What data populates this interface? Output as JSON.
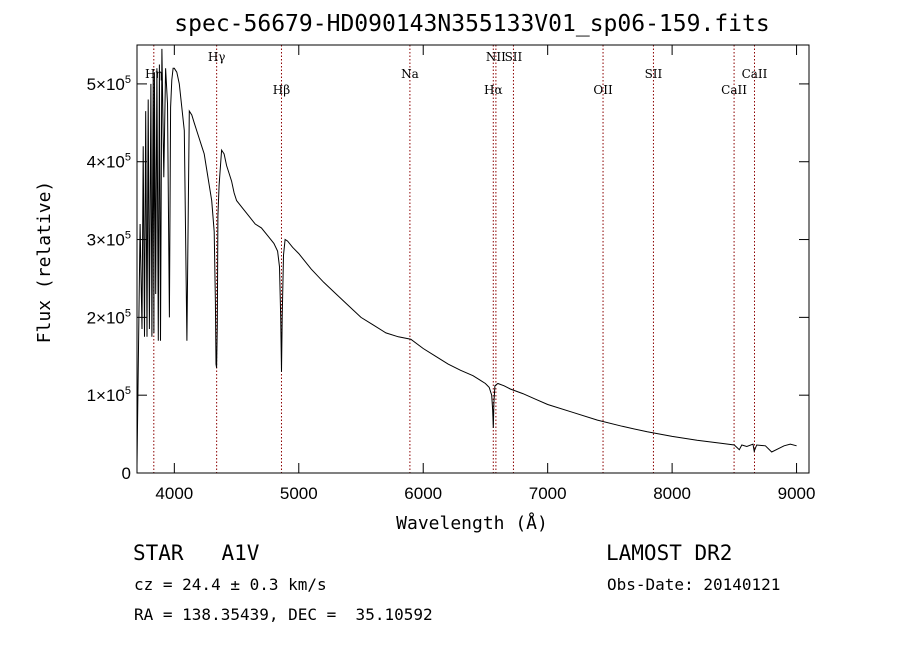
{
  "chart_data": {
    "type": "line",
    "title": "spec-56679-HD090143N355133V01_sp06-159.fits",
    "xlabel": "Wavelength (Å)",
    "ylabel": "Flux (relative)",
    "xlim": [
      3700,
      9100
    ],
    "ylim": [
      0,
      550000
    ],
    "x_ticks": [
      {
        "value": 4000,
        "label": "4000"
      },
      {
        "value": 5000,
        "label": "5000"
      },
      {
        "value": 6000,
        "label": "6000"
      },
      {
        "value": 7000,
        "label": "7000"
      },
      {
        "value": 8000,
        "label": "8000"
      },
      {
        "value": 9000,
        "label": "9000"
      }
    ],
    "y_ticks": [
      {
        "value": 0,
        "mant": "0",
        "exp": ""
      },
      {
        "value": 100000,
        "mant": "1×10",
        "exp": "5"
      },
      {
        "value": 200000,
        "mant": "2×10",
        "exp": "5"
      },
      {
        "value": 300000,
        "mant": "3×10",
        "exp": "5"
      },
      {
        "value": 400000,
        "mant": "4×10",
        "exp": "5"
      },
      {
        "value": 500000,
        "mant": "5×10",
        "exp": "5"
      }
    ],
    "grid": false,
    "line_color": "#000000",
    "marker_color": "#8b0000",
    "lines": [
      {
        "wavelength": 3835,
        "label": "Hη",
        "row": "low"
      },
      {
        "wavelength": 4340,
        "label": "Hγ",
        "row": "top"
      },
      {
        "wavelength": 4861,
        "label": "Hβ",
        "row": "bot"
      },
      {
        "wavelength": 5893,
        "label": "Na",
        "row": "mid"
      },
      {
        "wavelength": 6563,
        "label": "Hα",
        "row": "bot"
      },
      {
        "wavelength": 6584,
        "label": "NII",
        "row": "top"
      },
      {
        "wavelength": 6725,
        "label": "SII",
        "row": "top"
      },
      {
        "wavelength": 7445,
        "label": "OII",
        "row": "bot"
      },
      {
        "wavelength": 7850,
        "label": "SII",
        "row": "mid"
      },
      {
        "wavelength": 8498,
        "label": "CaII",
        "row": "bot"
      },
      {
        "wavelength": 8662,
        "label": "CaII",
        "row": "mid"
      }
    ],
    "series": [
      {
        "x": [
          3700,
          3712,
          3725,
          3740,
          3750,
          3760,
          3770,
          3780,
          3790,
          3800,
          3812,
          3820,
          3830,
          3836,
          3840,
          3850,
          3860,
          3871,
          3880,
          3889,
          3900,
          3915,
          3930,
          3945,
          3960,
          3970,
          3980,
          3990,
          4000,
          4020,
          4040,
          4060,
          4080,
          4101,
          4120,
          4140,
          4160,
          4180,
          4200,
          4220,
          4240,
          4260,
          4280,
          4300,
          4320,
          4330,
          4335,
          4340,
          4345,
          4350,
          4360,
          4380,
          4400,
          4420,
          4440,
          4460,
          4480,
          4500,
          4550,
          4600,
          4650,
          4700,
          4750,
          4800,
          4830,
          4845,
          4855,
          4861,
          4867,
          4877,
          4890,
          4910,
          4950,
          5000,
          5100,
          5200,
          5300,
          5400,
          5500,
          5600,
          5700,
          5800,
          5900,
          6000,
          6100,
          6200,
          6300,
          6400,
          6450,
          6500,
          6530,
          6550,
          6558,
          6563,
          6568,
          6576,
          6600,
          6650,
          6700,
          6800,
          6900,
          7000,
          7200,
          7400,
          7600,
          7800,
          8000,
          8200,
          8400,
          8500,
          8540,
          8560,
          8600,
          8650,
          8660,
          8680,
          8750,
          8800,
          8900,
          8950,
          9000
        ],
        "y": [
          10000,
          160000,
          320000,
          185000,
          420000,
          175000,
          465000,
          175000,
          480000,
          185000,
          500000,
          175000,
          510000,
          180000,
          515000,
          230000,
          520000,
          170000,
          525000,
          170000,
          545000,
          380000,
          520000,
          475000,
          200000,
          470000,
          505000,
          520000,
          520000,
          515000,
          500000,
          470000,
          440000,
          170000,
          465000,
          460000,
          450000,
          440000,
          430000,
          420000,
          410000,
          390000,
          370000,
          350000,
          310000,
          220000,
          140000,
          135000,
          190000,
          330000,
          370000,
          415000,
          410000,
          395000,
          385000,
          375000,
          360000,
          350000,
          340000,
          330000,
          320000,
          315000,
          305000,
          295000,
          285000,
          265000,
          200000,
          130000,
          200000,
          280000,
          300000,
          298000,
          290000,
          282000,
          262000,
          245000,
          230000,
          215000,
          200000,
          190000,
          180000,
          175000,
          172000,
          160000,
          150000,
          140000,
          132000,
          125000,
          120000,
          115000,
          110000,
          100000,
          80000,
          58000,
          90000,
          112000,
          115000,
          112000,
          108000,
          102000,
          95000,
          88000,
          78000,
          68000,
          60000,
          53000,
          47000,
          42000,
          38000,
          36000,
          30000,
          36000,
          34000,
          37000,
          28000,
          36000,
          35000,
          27000,
          35000,
          37000,
          35000
        ]
      }
    ]
  },
  "info": {
    "left_line1": "STAR   A1V",
    "left_line2": "cz = 24.4 ± 0.3 km/s",
    "left_line3": "RA = 138.35439, DEC =  35.10592",
    "right_line1": "LAMOST DR2",
    "right_line2": "Obs-Date: 20140121"
  }
}
